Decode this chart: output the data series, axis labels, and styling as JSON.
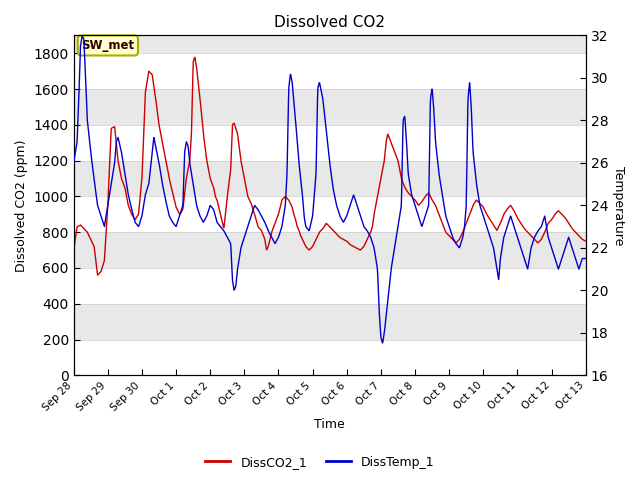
{
  "title": "Dissolved CO2",
  "xlabel": "Time",
  "ylabel_left": "Dissolved CO2 (ppm)",
  "ylabel_right": "Temperature",
  "annotation": "SW_met",
  "ylim_left": [
    0,
    1900
  ],
  "ylim_right": [
    16,
    32
  ],
  "yticks_left": [
    0,
    200,
    400,
    600,
    800,
    1000,
    1200,
    1400,
    1600,
    1800
  ],
  "yticks_right": [
    16,
    18,
    20,
    22,
    24,
    26,
    28,
    30,
    32
  ],
  "xtick_labels": [
    "Sep 28",
    "Sep 29",
    "Sep 30",
    "Oct 1",
    "Oct 2",
    "Oct 3",
    "Oct 4",
    "Oct 5",
    "Oct 6",
    "Oct 7",
    "Oct 8",
    "Oct 9",
    "Oct 10",
    "Oct 11",
    "Oct 12",
    "Oct 13"
  ],
  "co2_color": "#cc0000",
  "temp_color": "#0000cc",
  "legend_entries": [
    "DissCO2_1",
    "DissTemp_1"
  ],
  "background_color": "#ffffff",
  "stripe_color": "#e8e8e8",
  "annotation_bg": "#ffffcc",
  "annotation_border": "#aaaa00",
  "annotation_text_color": "#330000",
  "figsize": [
    6.4,
    4.8
  ],
  "dpi": 100
}
